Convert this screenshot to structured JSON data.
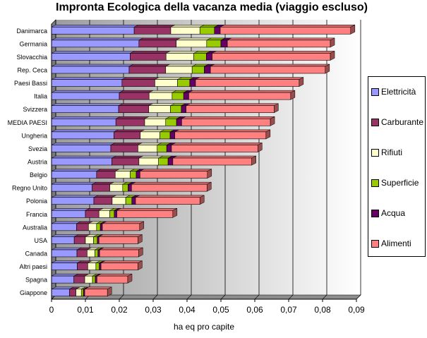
{
  "chart_data": {
    "type": "bar",
    "orientation": "horizontal",
    "stacked": true,
    "title": "Impronta Ecologica della vacanza media (viaggio escluso)",
    "xlabel": "ha eq pro capite",
    "ylabel": "",
    "xlim": [
      0,
      0.09
    ],
    "xticks": [
      0,
      0.01,
      0.02,
      0.03,
      0.04,
      0.05,
      0.06,
      0.07,
      0.08,
      0.09
    ],
    "xtick_labels": [
      "0",
      "0,01",
      "0,02",
      "0,03",
      "0,04",
      "0,05",
      "0,06",
      "0,07",
      "0,08",
      "0,09"
    ],
    "grid": true,
    "legend_position": "right",
    "categories": [
      "Danimarca",
      "Germania",
      "Slovacchia",
      "Rep. Ceca",
      "Paesi Bassi",
      "Italia",
      "Svizzera",
      "MEDIA PAESI",
      "Ungheria",
      "Svezia",
      "Austria",
      "Belgio",
      "Regno Unito",
      "Polonia",
      "Francia",
      "Australia",
      "USA",
      "Canada",
      "Altri paesi",
      "Spagna",
      "Giappone"
    ],
    "series": [
      {
        "name": "Elettricità",
        "color": "#9999ff",
        "values": [
          0.0244,
          0.0258,
          0.0232,
          0.0229,
          0.0208,
          0.02,
          0.0198,
          0.019,
          0.0184,
          0.0175,
          0.0178,
          0.0133,
          0.012,
          0.0125,
          0.01,
          0.0074,
          0.0067,
          0.0075,
          0.0076,
          0.0066,
          0.0053
        ]
      },
      {
        "name": "Carburante",
        "color": "#993366",
        "values": [
          0.0108,
          0.011,
          0.0106,
          0.0108,
          0.0097,
          0.0088,
          0.0089,
          0.0085,
          0.0078,
          0.008,
          0.008,
          0.0055,
          0.0052,
          0.0054,
          0.004,
          0.0035,
          0.0033,
          0.003,
          0.0031,
          0.0032,
          0.0019
        ]
      },
      {
        "name": "Rifiuti",
        "color": "#ffffcc",
        "values": [
          0.0086,
          0.009,
          0.0082,
          0.0078,
          0.0067,
          0.0068,
          0.0064,
          0.0062,
          0.0058,
          0.0057,
          0.0058,
          0.0044,
          0.0038,
          0.004,
          0.0032,
          0.0024,
          0.0024,
          0.0023,
          0.0024,
          0.0023,
          0.0016
        ]
      },
      {
        "name": "Superficie",
        "color": "#99cc00",
        "values": [
          0.0043,
          0.0042,
          0.0037,
          0.0036,
          0.0036,
          0.0034,
          0.0032,
          0.0032,
          0.003,
          0.0028,
          0.0028,
          0.0018,
          0.0016,
          0.0018,
          0.0013,
          0.0011,
          0.0011,
          0.0009,
          0.001,
          0.0008,
          0.0006
        ]
      },
      {
        "name": "Acqua",
        "color": "#660066",
        "values": [
          0.0017,
          0.0019,
          0.0017,
          0.0018,
          0.0017,
          0.0015,
          0.0014,
          0.0015,
          0.0014,
          0.0014,
          0.0014,
          0.0011,
          0.001,
          0.0011,
          0.0008,
          0.0006,
          0.0005,
          0.0005,
          0.0005,
          0.0005,
          0.0004
        ]
      },
      {
        "name": "Alimenti",
        "color": "#ff8080",
        "values": [
          0.0385,
          0.0304,
          0.0349,
          0.0339,
          0.0306,
          0.0301,
          0.026,
          0.0262,
          0.0269,
          0.0255,
          0.0233,
          0.0199,
          0.0223,
          0.019,
          0.0165,
          0.011,
          0.0115,
          0.0115,
          0.0109,
          0.0091,
          0.0067
        ]
      }
    ]
  }
}
